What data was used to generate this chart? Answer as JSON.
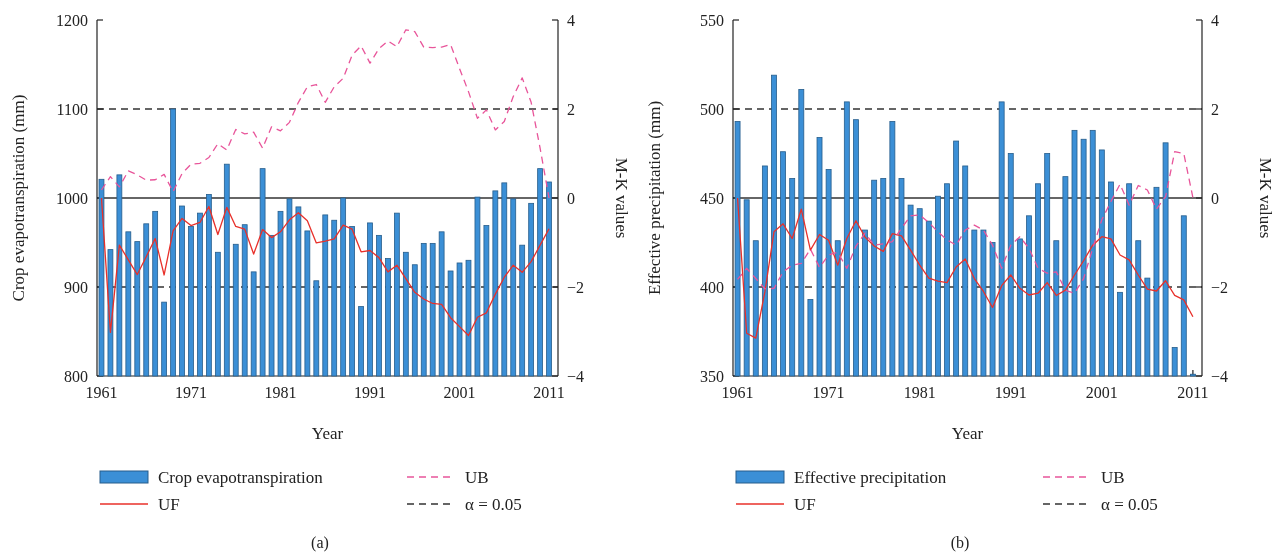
{
  "chart_data": [
    {
      "type": "bar",
      "xlabel": "Year",
      "ylabel": "Crop evapotranspiration (mm)",
      "y2label": "M-K values",
      "annotations": [
        "(a)",
        "α = 0.05"
      ],
      "x": [
        1961,
        1962,
        1963,
        1964,
        1965,
        1966,
        1967,
        1968,
        1969,
        1970,
        1971,
        1972,
        1973,
        1974,
        1975,
        1976,
        1977,
        1978,
        1979,
        1980,
        1981,
        1982,
        1983,
        1984,
        1985,
        1986,
        1987,
        1988,
        1989,
        1990,
        1991,
        1992,
        1993,
        1994,
        1995,
        1996,
        1997,
        1998,
        1999,
        2000,
        2001,
        2002,
        2003,
        2004,
        2005,
        2006,
        2007,
        2008,
        2009,
        2010,
        2011
      ],
      "xlim": [
        1960.5,
        2012
      ],
      "xticks": [
        1961,
        1971,
        1981,
        1991,
        2001,
        2011
      ],
      "ylim": [
        800,
        1200
      ],
      "yticks": [
        800,
        900,
        1000,
        1100,
        1200
      ],
      "y2lim": [
        -4,
        4
      ],
      "y2ticks": [
        -4,
        -2,
        0,
        2,
        4
      ],
      "legend": "bottom",
      "series": [
        {
          "name": "Crop evapotranspiration",
          "color": "#3b8fd6",
          "values": [
            1021,
            942,
            1026,
            962,
            951,
            971,
            985,
            883,
            1100,
            991,
            968,
            983,
            1004,
            939,
            1038,
            948,
            970,
            917,
            1033,
            958,
            985,
            999,
            990,
            963,
            907,
            981,
            975,
            1000,
            968,
            878,
            972,
            958,
            932,
            983,
            939,
            925,
            949,
            949,
            962,
            918,
            927,
            930,
            1001,
            969,
            1008,
            1017,
            999,
            947,
            994,
            1033,
            1018
          ]
        },
        {
          "name": "UF",
          "type": "line",
          "axis": "y2",
          "color": "#e8302a",
          "line_style": "solid",
          "values": [
            0,
            -3.02,
            -1.06,
            -1.39,
            -1.72,
            -1.32,
            -0.91,
            -1.73,
            -0.74,
            -0.46,
            -0.62,
            -0.55,
            -0.19,
            -0.82,
            -0.21,
            -0.64,
            -0.7,
            -1.26,
            -0.71,
            -0.89,
            -0.76,
            -0.49,
            -0.33,
            -0.51,
            -1.01,
            -0.97,
            -0.92,
            -0.61,
            -0.7,
            -1.21,
            -1.18,
            -1.34,
            -1.66,
            -1.51,
            -1.81,
            -2.12,
            -2.27,
            -2.37,
            -2.39,
            -2.69,
            -2.89,
            -3.09,
            -2.68,
            -2.58,
            -2.16,
            -1.78,
            -1.51,
            -1.67,
            -1.43,
            -1.06,
            -0.69
          ]
        },
        {
          "name": "UB",
          "type": "line",
          "axis": "y2",
          "color": "#e8559a",
          "line_style": "dashed",
          "values": [
            0.18,
            0.48,
            0.25,
            0.61,
            0.52,
            0.4,
            0.41,
            0.53,
            0.14,
            0.55,
            0.76,
            0.78,
            0.91,
            1.22,
            1.08,
            1.54,
            1.44,
            1.48,
            1.12,
            1.6,
            1.51,
            1.7,
            2.15,
            2.5,
            2.55,
            2.15,
            2.5,
            2.69,
            3.21,
            3.42,
            3.03,
            3.36,
            3.53,
            3.4,
            3.78,
            3.74,
            3.39,
            3.38,
            3.39,
            3.45,
            2.91,
            2.39,
            1.79,
            1.98,
            1.53,
            1.72,
            2.28,
            2.7,
            2.15,
            1.12,
            0
          ]
        }
      ],
      "ref_lines": [
        {
          "axis": "y2",
          "value": 2,
          "color": "#333333",
          "line_style": "dashed"
        },
        {
          "axis": "y2",
          "value": -2,
          "color": "#333333",
          "line_style": "dashed"
        },
        {
          "axis": "y2",
          "value": 0,
          "color": "#333333",
          "line_style": "solid"
        }
      ]
    },
    {
      "type": "bar",
      "xlabel": "Year",
      "ylabel": "Effective precipitation (mm)",
      "y2label": "M-K values",
      "annotations": [
        "(b)",
        "α = 0.05"
      ],
      "x": [
        1961,
        1962,
        1963,
        1964,
        1965,
        1966,
        1967,
        1968,
        1969,
        1970,
        1971,
        1972,
        1973,
        1974,
        1975,
        1976,
        1977,
        1978,
        1979,
        1980,
        1981,
        1982,
        1983,
        1984,
        1985,
        1986,
        1987,
        1988,
        1989,
        1990,
        1991,
        1992,
        1993,
        1994,
        1995,
        1996,
        1997,
        1998,
        1999,
        2000,
        2001,
        2002,
        2003,
        2004,
        2005,
        2006,
        2007,
        2008,
        2009,
        2010,
        2011
      ],
      "xlim": [
        1960.5,
        2012
      ],
      "xticks": [
        1961,
        1971,
        1981,
        1991,
        2001,
        2011
      ],
      "ylim": [
        350,
        550
      ],
      "yticks": [
        350,
        400,
        450,
        500,
        550
      ],
      "y2lim": [
        -4,
        4
      ],
      "y2ticks": [
        -4,
        -2,
        0,
        2,
        4
      ],
      "legend": "bottom",
      "series": [
        {
          "name": "Effective precipitation",
          "color": "#3b8fd6",
          "values": [
            493,
            449,
            426,
            468,
            519,
            476,
            461,
            511,
            393,
            484,
            466,
            426,
            504,
            494,
            432,
            460,
            461,
            493,
            461,
            446,
            444,
            437,
            451,
            458,
            482,
            468,
            432,
            432,
            425,
            504,
            475,
            427,
            440,
            458,
            475,
            426,
            462,
            488,
            483,
            488,
            477,
            459,
            397,
            458,
            426,
            405,
            456,
            481,
            366,
            440,
            351
          ]
        },
        {
          "name": "UF",
          "type": "line",
          "axis": "y2",
          "color": "#e8302a",
          "line_style": "solid",
          "values": [
            0,
            -3.04,
            -3.15,
            -2.11,
            -0.76,
            -0.58,
            -0.91,
            -0.25,
            -1.17,
            -0.82,
            -0.95,
            -1.51,
            -0.91,
            -0.51,
            -0.88,
            -1.08,
            -1.2,
            -0.8,
            -0.85,
            -1.17,
            -1.51,
            -1.8,
            -1.87,
            -1.9,
            -1.55,
            -1.37,
            -1.81,
            -2.1,
            -2.46,
            -1.97,
            -1.73,
            -2.03,
            -2.18,
            -2.14,
            -1.9,
            -2.19,
            -2.07,
            -1.73,
            -1.41,
            -1.06,
            -0.87,
            -0.92,
            -1.28,
            -1.39,
            -1.73,
            -2.05,
            -2.09,
            -1.86,
            -2.19,
            -2.29,
            -2.67
          ]
        },
        {
          "name": "UB",
          "type": "line",
          "axis": "y2",
          "color": "#e8559a",
          "line_style": "dashed",
          "values": [
            -1.83,
            -1.58,
            -1.81,
            -2.04,
            -2.03,
            -1.66,
            -1.51,
            -1.47,
            -1.15,
            -1.56,
            -1.28,
            -1.22,
            -1.58,
            -1.08,
            -0.79,
            -1.06,
            -1.03,
            -0.98,
            -0.68,
            -0.4,
            -0.38,
            -0.55,
            -0.76,
            -0.94,
            -1.06,
            -0.72,
            -0.61,
            -0.72,
            -1.06,
            -1.58,
            -1.06,
            -0.87,
            -1.13,
            -1.58,
            -1.69,
            -1.66,
            -2.07,
            -2.14,
            -1.81,
            -1.13,
            -0.49,
            -0.08,
            0.31,
            -0.16,
            0.28,
            0.18,
            -0.25,
            0.03,
            1.04,
            1,
            0.01
          ]
        }
      ],
      "ref_lines": [
        {
          "axis": "y2",
          "value": 2,
          "color": "#333333",
          "line_style": "dashed"
        },
        {
          "axis": "y2",
          "value": -2,
          "color": "#333333",
          "line_style": "dashed"
        },
        {
          "axis": "y2",
          "value": 0,
          "color": "#333333",
          "line_style": "solid"
        }
      ]
    }
  ]
}
